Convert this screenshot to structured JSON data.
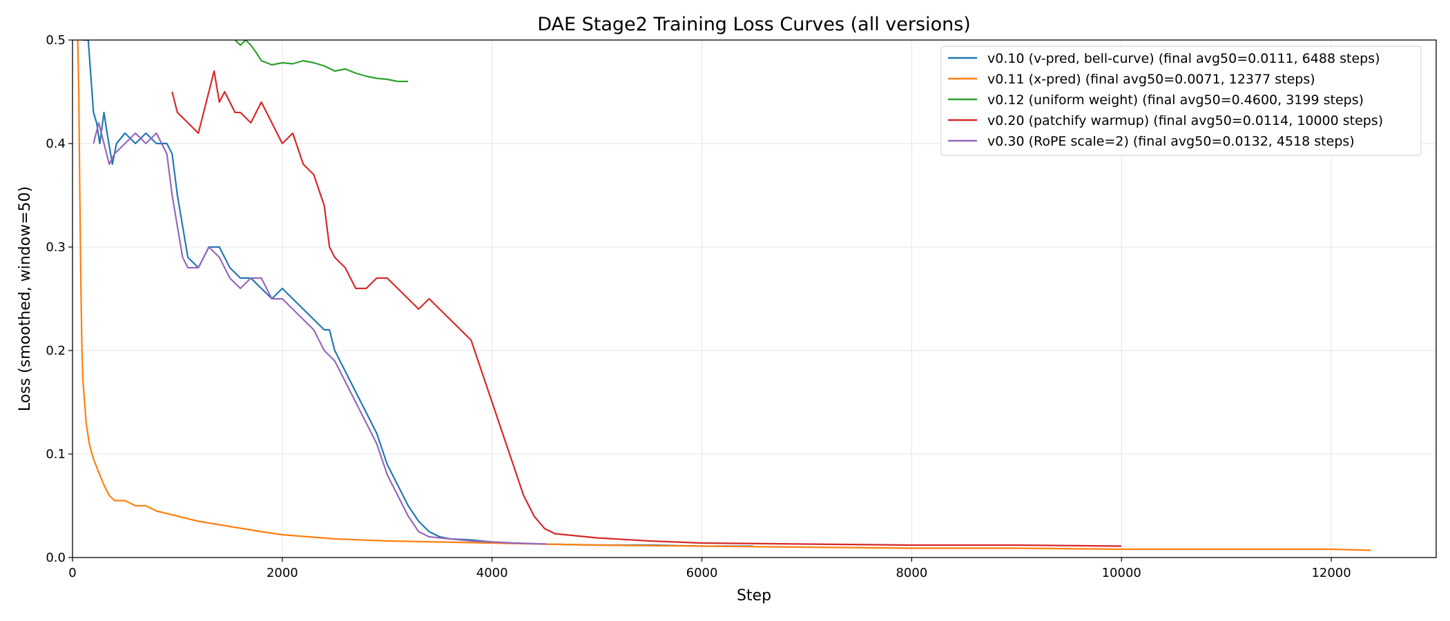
{
  "chart_data": {
    "type": "line",
    "title": "DAE Stage2 Training Loss Curves (all versions)",
    "xlabel": "Step",
    "ylabel": "Loss (smoothed, window=50)",
    "xlim": [
      0,
      13000
    ],
    "ylim": [
      0,
      0.5
    ],
    "xticks": [
      0,
      2000,
      4000,
      6000,
      8000,
      10000,
      12000
    ],
    "yticks": [
      0.0,
      0.1,
      0.2,
      0.3,
      0.4,
      0.5
    ],
    "grid": true,
    "legend_position": "top-right",
    "series": [
      {
        "name": "v0.10 (v-pred, bell-curve) (final avg50=0.0111, 6488 steps)",
        "color": "#1f77b4",
        "x": [
          100,
          150,
          200,
          230,
          260,
          300,
          330,
          380,
          420,
          500,
          600,
          700,
          800,
          900,
          950,
          1000,
          1050,
          1100,
          1200,
          1300,
          1400,
          1500,
          1600,
          1700,
          1800,
          1900,
          2000,
          2100,
          2200,
          2300,
          2400,
          2450,
          2500,
          2600,
          2700,
          2800,
          2900,
          3000,
          3100,
          3200,
          3300,
          3400,
          3500,
          3600,
          3800,
          4000,
          4200,
          4500,
          5000,
          5500,
          6000,
          6488
        ],
        "y": [
          0.5,
          0.5,
          0.43,
          0.42,
          0.4,
          0.43,
          0.41,
          0.38,
          0.4,
          0.41,
          0.4,
          0.41,
          0.4,
          0.4,
          0.39,
          0.35,
          0.32,
          0.29,
          0.28,
          0.3,
          0.3,
          0.28,
          0.27,
          0.27,
          0.26,
          0.25,
          0.26,
          0.25,
          0.24,
          0.23,
          0.22,
          0.22,
          0.2,
          0.18,
          0.16,
          0.14,
          0.12,
          0.09,
          0.07,
          0.05,
          0.035,
          0.025,
          0.02,
          0.018,
          0.017,
          0.015,
          0.014,
          0.013,
          0.012,
          0.012,
          0.011,
          0.011
        ]
      },
      {
        "name": "v0.11 (x-pred) (final avg50=0.0071, 12377 steps)",
        "color": "#ff7f0e",
        "x": [
          50,
          60,
          70,
          80,
          90,
          100,
          130,
          160,
          200,
          260,
          300,
          350,
          400,
          500,
          600,
          700,
          800,
          1000,
          1200,
          1500,
          1800,
          2000,
          2500,
          3000,
          3500,
          4000,
          5000,
          6000,
          7000,
          8000,
          9000,
          10000,
          11000,
          12000,
          12377
        ],
        "y": [
          0.5,
          0.45,
          0.35,
          0.26,
          0.2,
          0.17,
          0.13,
          0.11,
          0.095,
          0.08,
          0.07,
          0.06,
          0.055,
          0.055,
          0.05,
          0.05,
          0.045,
          0.04,
          0.035,
          0.03,
          0.025,
          0.022,
          0.018,
          0.016,
          0.015,
          0.014,
          0.012,
          0.011,
          0.01,
          0.009,
          0.009,
          0.008,
          0.008,
          0.008,
          0.007
        ]
      },
      {
        "name": "v0.12 (uniform weight) (final avg50=0.4600, 3199 steps)",
        "color": "#2ca02c",
        "x": [
          1550,
          1600,
          1650,
          1700,
          1750,
          1800,
          1900,
          2000,
          2100,
          2200,
          2300,
          2400,
          2500,
          2600,
          2700,
          2800,
          2900,
          3000,
          3100,
          3199
        ],
        "y": [
          0.5,
          0.495,
          0.5,
          0.495,
          0.488,
          0.48,
          0.476,
          0.478,
          0.477,
          0.48,
          0.478,
          0.475,
          0.47,
          0.472,
          0.468,
          0.465,
          0.463,
          0.462,
          0.46,
          0.46
        ]
      },
      {
        "name": "v0.20 (patchify warmup) (final avg50=0.0114, 10000 steps)",
        "color": "#d62728",
        "x": [
          950,
          1000,
          1100,
          1200,
          1300,
          1350,
          1400,
          1450,
          1500,
          1550,
          1600,
          1700,
          1800,
          1900,
          2000,
          2100,
          2200,
          2300,
          2400,
          2450,
          2500,
          2600,
          2700,
          2800,
          2900,
          3000,
          3100,
          3200,
          3300,
          3400,
          3500,
          3600,
          3700,
          3800,
          3900,
          4000,
          4100,
          4200,
          4300,
          4400,
          4500,
          4600,
          4800,
          5000,
          5500,
          6000,
          7000,
          8000,
          9000,
          10000
        ],
        "y": [
          0.45,
          0.43,
          0.42,
          0.41,
          0.45,
          0.47,
          0.44,
          0.45,
          0.44,
          0.43,
          0.43,
          0.42,
          0.44,
          0.42,
          0.4,
          0.41,
          0.38,
          0.37,
          0.34,
          0.3,
          0.29,
          0.28,
          0.26,
          0.26,
          0.27,
          0.27,
          0.26,
          0.25,
          0.24,
          0.25,
          0.24,
          0.23,
          0.22,
          0.21,
          0.18,
          0.15,
          0.12,
          0.09,
          0.06,
          0.04,
          0.028,
          0.023,
          0.021,
          0.019,
          0.016,
          0.014,
          0.013,
          0.012,
          0.012,
          0.011
        ]
      },
      {
        "name": "v0.30 (RoPE scale=2) (final avg50=0.0132, 4518 steps)",
        "color": "#9467bd",
        "x": [
          200,
          250,
          300,
          350,
          400,
          500,
          600,
          700,
          800,
          900,
          950,
          1000,
          1050,
          1100,
          1200,
          1300,
          1400,
          1500,
          1600,
          1700,
          1800,
          1900,
          2000,
          2100,
          2200,
          2300,
          2400,
          2500,
          2600,
          2700,
          2800,
          2900,
          3000,
          3100,
          3200,
          3300,
          3400,
          3600,
          3800,
          4000,
          4200,
          4518
        ],
        "y": [
          0.4,
          0.42,
          0.4,
          0.38,
          0.39,
          0.4,
          0.41,
          0.4,
          0.41,
          0.39,
          0.35,
          0.32,
          0.29,
          0.28,
          0.28,
          0.3,
          0.29,
          0.27,
          0.26,
          0.27,
          0.27,
          0.25,
          0.25,
          0.24,
          0.23,
          0.22,
          0.2,
          0.19,
          0.17,
          0.15,
          0.13,
          0.11,
          0.08,
          0.06,
          0.04,
          0.025,
          0.02,
          0.018,
          0.016,
          0.015,
          0.014,
          0.013
        ]
      }
    ]
  }
}
